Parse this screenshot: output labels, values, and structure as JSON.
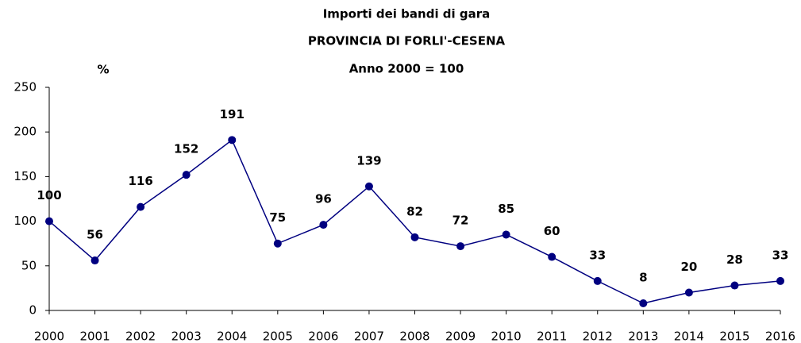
{
  "chart_data": {
    "type": "line",
    "title": [
      "Importi dei bandi di gara",
      "PROVINCIA DI FORLI'-CESENA",
      "Anno 2000 = 100"
    ],
    "y_axis_label": "%",
    "categories": [
      "2000",
      "2001",
      "2002",
      "2003",
      "2004",
      "2005",
      "2006",
      "2007",
      "2008",
      "2009",
      "2010",
      "2011",
      "2012",
      "2013",
      "2014",
      "2015",
      "2016"
    ],
    "series": [
      {
        "color": "#000080",
        "values": [
          100,
          56,
          116,
          152,
          191,
          75,
          96,
          139,
          82,
          72,
          85,
          60,
          33,
          8,
          20,
          28,
          33
        ]
      }
    ],
    "ylim": [
      0,
      250
    ],
    "yticks": [
      0,
      50,
      100,
      150,
      200,
      250
    ],
    "grid": false
  }
}
